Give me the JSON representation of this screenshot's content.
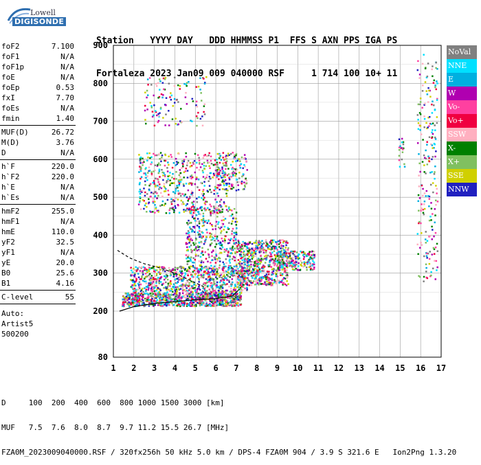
{
  "logo": {
    "line1": "Lowell",
    "line2": "DIGISONDE"
  },
  "header": {
    "labels": "Station   YYYY DAY   DDD HHMMSS P1  FFS S AXN PPS IGA PS",
    "values": "Fortaleza 2023 Jan09 009 040000 RSF     1 714 100 10+ 11"
  },
  "params": {
    "group1": [
      {
        "name": "foF2",
        "value": "7.100"
      },
      {
        "name": "foF1",
        "value": "N/A"
      },
      {
        "name": "foF1p",
        "value": "N/A"
      },
      {
        "name": "foE",
        "value": "N/A"
      },
      {
        "name": "foEp",
        "value": "0.53"
      },
      {
        "name": "fxI",
        "value": "7.70"
      },
      {
        "name": "foEs",
        "value": "N/A"
      },
      {
        "name": "fmin",
        "value": "1.40"
      }
    ],
    "group2": [
      {
        "name": "MUF(D)",
        "value": "26.72"
      },
      {
        "name": "M(D)",
        "value": "3.76"
      },
      {
        "name": "D",
        "value": "N/A"
      }
    ],
    "group3": [
      {
        "name": "h`F",
        "value": "220.0"
      },
      {
        "name": "h`F2",
        "value": "220.0"
      },
      {
        "name": "h`E",
        "value": "N/A"
      },
      {
        "name": "h`Es",
        "value": "N/A"
      }
    ],
    "group4": [
      {
        "name": "hmF2",
        "value": "255.0"
      },
      {
        "name": "hmF1",
        "value": "N/A"
      },
      {
        "name": "hmE",
        "value": "110.0"
      },
      {
        "name": "yF2",
        "value": "32.5"
      },
      {
        "name": "yF1",
        "value": "N/A"
      },
      {
        "name": "yE",
        "value": "20.0"
      },
      {
        "name": "B0",
        "value": "25.6"
      },
      {
        "name": "B1",
        "value": "4.16"
      }
    ],
    "group5": [
      {
        "name": "C-level",
        "value": "55"
      }
    ],
    "auto": [
      "Auto:",
      "Artist5",
      "500200"
    ]
  },
  "legend": [
    {
      "label": "NoVal",
      "color": "#808080"
    },
    {
      "label": "NNE",
      "color": "#00e0ff"
    },
    {
      "label": "E",
      "color": "#00b0e0"
    },
    {
      "label": "W",
      "color": "#b000b0"
    },
    {
      "label": "Vo-",
      "color": "#ff40a0"
    },
    {
      "label": "Vo+",
      "color": "#f00040"
    },
    {
      "label": "SSW",
      "color": "#ffb0c0"
    },
    {
      "label": "X-",
      "color": "#008000"
    },
    {
      "label": "X+",
      "color": "#80c060"
    },
    {
      "label": "SSE",
      "color": "#d0d000"
    },
    {
      "label": "NNW",
      "color": "#2020c0"
    }
  ],
  "bottom": {
    "line1": "D     100  200  400  600  800 1000 1500 3000 [km]",
    "line2": "MUF   7.5  7.6  8.0  8.7  9.7 11.2 15.5 26.7 [MHz]",
    "line3": "FZA0M_2023009040000.RSF / 320fx256h 50 kHz 5.0 km / DPS-4 FZA0M 904 / 3.9 S 321.6 E   Ion2Png 1.3.20"
  },
  "chart_data": {
    "type": "scatter",
    "xlim": [
      1,
      17
    ],
    "ylim": [
      80,
      900
    ],
    "x_ticks": [
      1,
      2,
      3,
      4,
      5,
      6,
      7,
      8,
      9,
      10,
      11,
      12,
      13,
      14,
      15,
      16,
      17
    ],
    "y_ticks": [
      80,
      200,
      300,
      400,
      500,
      600,
      700,
      800,
      900
    ],
    "grid": true,
    "series": [
      {
        "name": "trace",
        "points": [
          [
            1.3,
            200
          ],
          [
            2,
            212
          ],
          [
            3,
            220
          ],
          [
            4,
            225
          ],
          [
            5,
            230
          ],
          [
            6,
            233
          ],
          [
            6.8,
            240
          ],
          [
            7.1,
            255
          ]
        ]
      },
      {
        "name": "dashed",
        "points": [
          [
            1.2,
            360
          ],
          [
            1.8,
            340
          ],
          [
            2.5,
            325
          ],
          [
            3.2,
            315
          ],
          [
            4,
            300
          ],
          [
            4.8,
            280
          ],
          [
            5.5,
            262
          ]
        ]
      }
    ],
    "clusters": [
      {
        "x": [
          1.4,
          7.2
        ],
        "y": [
          215,
          250
        ],
        "n": 900
      },
      {
        "x": [
          1.8,
          7.5
        ],
        "y": [
          250,
          320
        ],
        "n": 700
      },
      {
        "x": [
          4.5,
          7.0
        ],
        "y": [
          300,
          480
        ],
        "n": 450
      },
      {
        "x": [
          7.0,
          9.5
        ],
        "y": [
          270,
          390
        ],
        "n": 650
      },
      {
        "x": [
          9.0,
          10.8
        ],
        "y": [
          310,
          360
        ],
        "n": 200
      },
      {
        "x": [
          2.2,
          6.5
        ],
        "y": [
          460,
          620
        ],
        "n": 500
      },
      {
        "x": [
          6.0,
          7.5
        ],
        "y": [
          520,
          620
        ],
        "n": 150
      },
      {
        "x": [
          2.5,
          5.5
        ],
        "y": [
          690,
          820
        ],
        "n": 120
      },
      {
        "x": [
          15.8,
          16.8
        ],
        "y": [
          280,
          880
        ],
        "n": 220
      },
      {
        "x": [
          14.9,
          15.2
        ],
        "y": [
          580,
          660
        ],
        "n": 20
      }
    ]
  }
}
